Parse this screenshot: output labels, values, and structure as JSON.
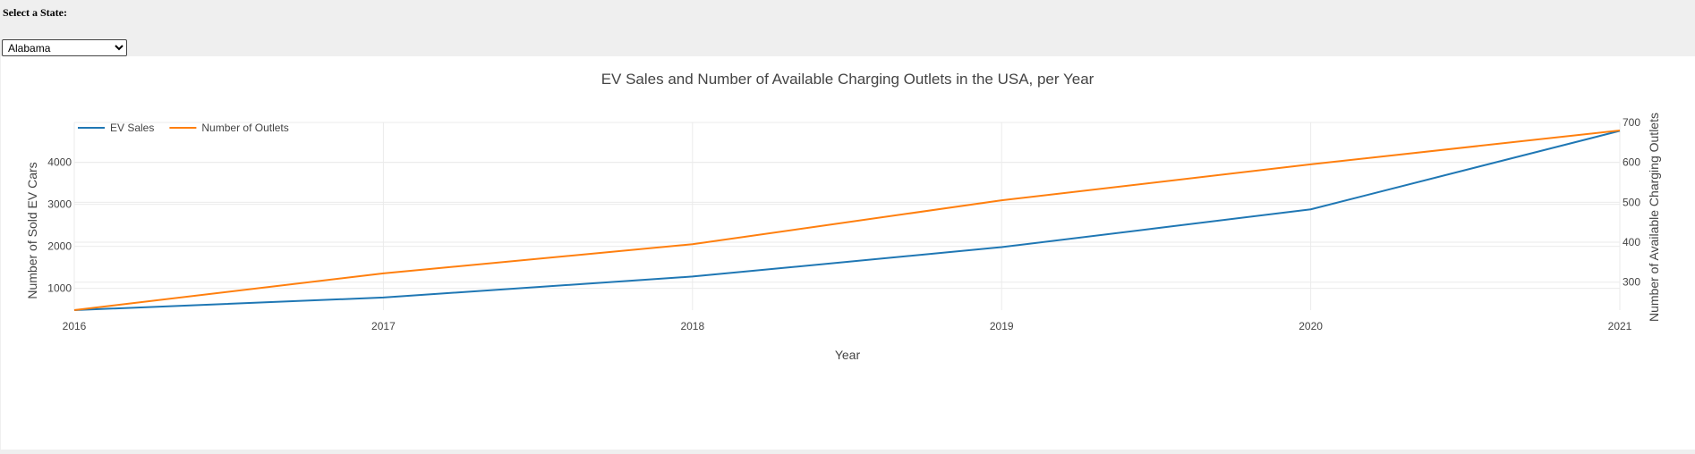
{
  "state_selector": {
    "label": "Select a State:",
    "selected": "Alabama"
  },
  "chart_data": {
    "type": "line",
    "title": "EV Sales and Number of Available Charging Outlets in the USA, per Year",
    "xlabel": "Year",
    "ylabel": "Number of Sold EV Cars",
    "y2label": "Number of Available Charging Outlets",
    "x": [
      2016,
      2017,
      2018,
      2019,
      2020,
      2021
    ],
    "xlim": [
      2016,
      2021
    ],
    "ylim": [
      480,
      4950
    ],
    "y2lim": [
      230,
      700
    ],
    "yticks": [
      1000,
      2000,
      3000,
      4000
    ],
    "y2ticks": [
      300,
      400,
      500,
      600,
      700
    ],
    "grid": true,
    "legend_position": "top-left, horizontal",
    "series": [
      {
        "name": "EV Sales",
        "axis": "left",
        "color": "#1f77b4",
        "values": [
          480,
          780,
          1280,
          1980,
          2880,
          4750
        ]
      },
      {
        "name": "Number of Outlets",
        "axis": "right",
        "color": "#ff7f0e",
        "values": [
          230,
          322,
          395,
          505,
          595,
          680
        ]
      }
    ]
  }
}
